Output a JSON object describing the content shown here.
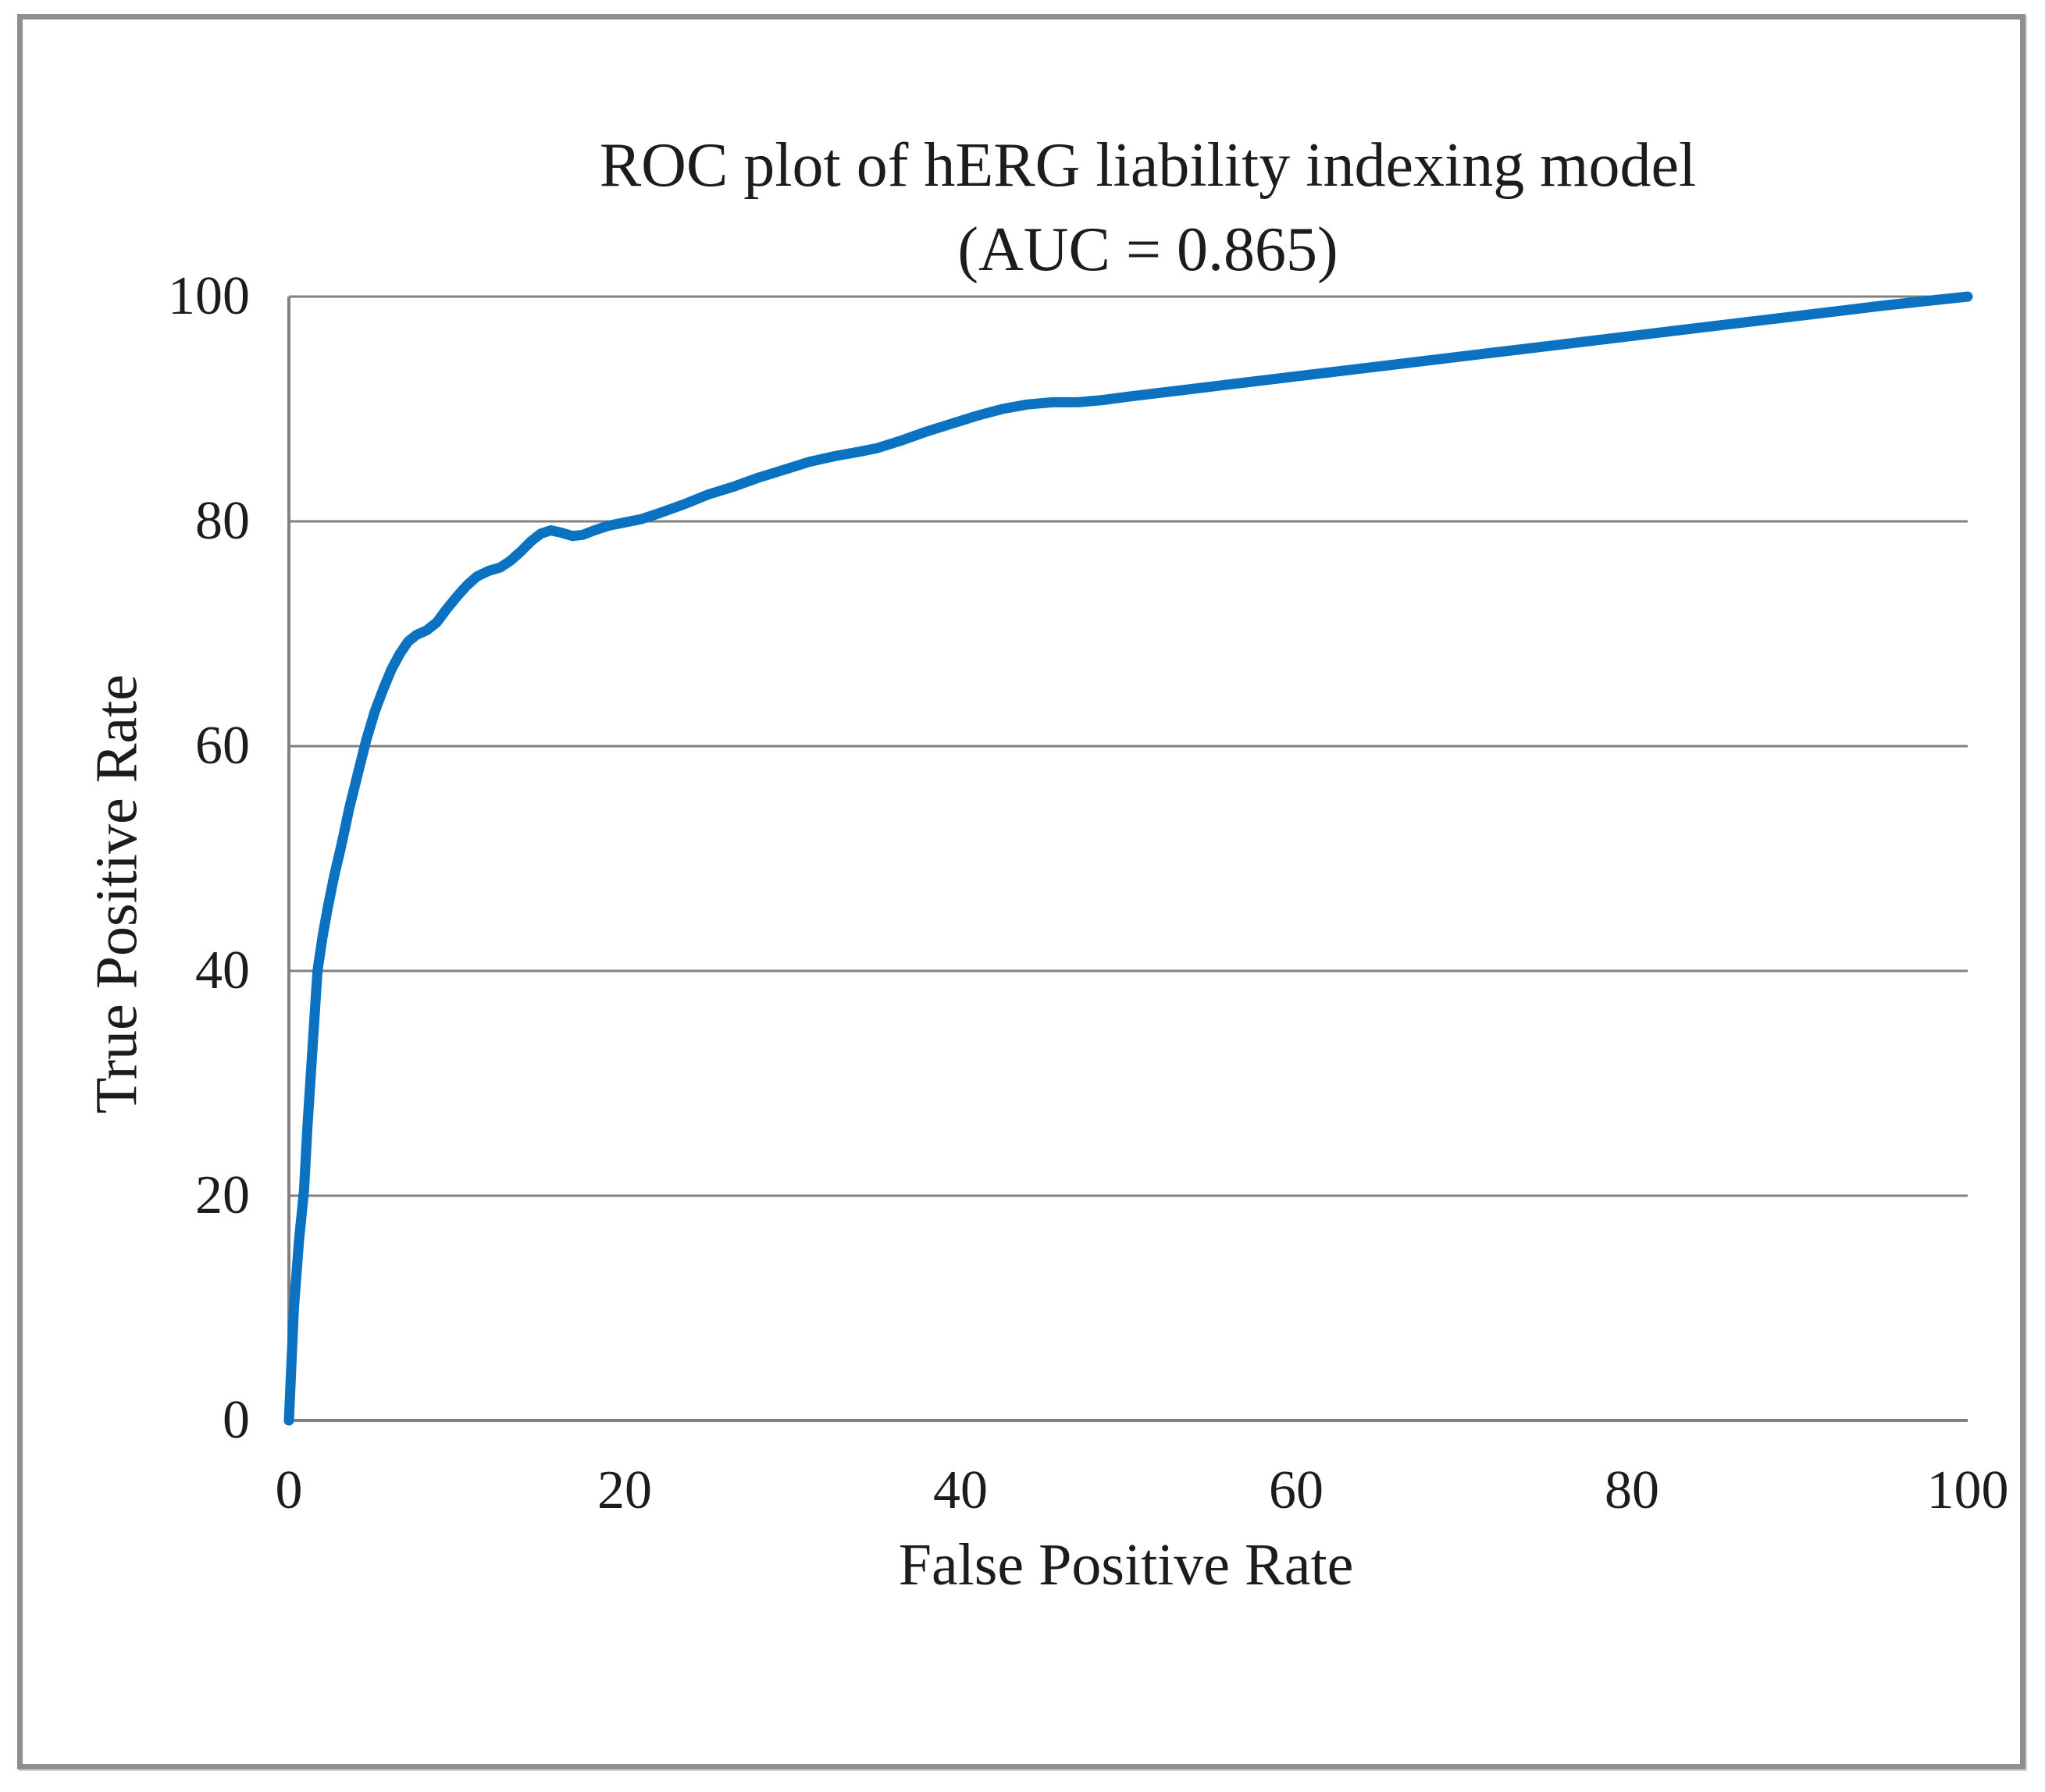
{
  "figure": {
    "title_line1": "ROC plot of hERG liability indexing model",
    "title_line2": "(AUC = 0.865)"
  },
  "chart_data": {
    "type": "line",
    "title": "ROC plot of hERG liability indexing model (AUC = 0.865)",
    "auc_label": "AUC = 0.865",
    "auc_value": 0.865,
    "xlabel": "False Positive Rate",
    "ylabel": "True Positive Rate",
    "xlim": [
      0,
      100
    ],
    "ylim": [
      0,
      100
    ],
    "x_ticks": [
      0,
      20,
      40,
      60,
      80,
      100
    ],
    "y_ticks": [
      0,
      20,
      40,
      60,
      80,
      100
    ],
    "grid": "horizontal-only",
    "legend_position": "none",
    "series": [
      {
        "name": "ROC curve",
        "color": "#0a72c0",
        "points": [
          [
            0,
            0
          ],
          [
            0.3,
            10
          ],
          [
            0.6,
            16
          ],
          [
            0.9,
            20.5
          ],
          [
            1.1,
            26
          ],
          [
            1.4,
            33
          ],
          [
            1.7,
            40
          ],
          [
            2,
            43
          ],
          [
            2.3,
            45.5
          ],
          [
            2.7,
            48.5
          ],
          [
            3.1,
            51
          ],
          [
            3.6,
            54.5
          ],
          [
            4.1,
            57.5
          ],
          [
            4.6,
            60.5
          ],
          [
            5.1,
            63
          ],
          [
            5.6,
            65
          ],
          [
            6.1,
            66.8
          ],
          [
            6.6,
            68.2
          ],
          [
            7.1,
            69.3
          ],
          [
            7.6,
            69.9
          ],
          [
            8.2,
            70.3
          ],
          [
            8.8,
            71
          ],
          [
            9.4,
            72.2
          ],
          [
            10,
            73.3
          ],
          [
            10.6,
            74.3
          ],
          [
            11.2,
            75.1
          ],
          [
            11.9,
            75.6
          ],
          [
            12.6,
            75.9
          ],
          [
            13.2,
            76.5
          ],
          [
            13.8,
            77.3
          ],
          [
            14.4,
            78.2
          ],
          [
            15,
            78.9
          ],
          [
            15.6,
            79.2
          ],
          [
            16.2,
            79
          ],
          [
            16.9,
            78.7
          ],
          [
            17.5,
            78.8
          ],
          [
            18.2,
            79.2
          ],
          [
            19,
            79.6
          ],
          [
            20,
            79.9
          ],
          [
            21,
            80.2
          ],
          [
            22,
            80.7
          ],
          [
            23.5,
            81.5
          ],
          [
            25,
            82.4
          ],
          [
            26.5,
            83.1
          ],
          [
            28,
            83.9
          ],
          [
            29.5,
            84.6
          ],
          [
            31,
            85.3
          ],
          [
            32.5,
            85.8
          ],
          [
            34,
            86.2
          ],
          [
            35,
            86.5
          ],
          [
            36.5,
            87.2
          ],
          [
            38,
            88
          ],
          [
            39.5,
            88.7
          ],
          [
            41,
            89.4
          ],
          [
            42.5,
            90
          ],
          [
            44,
            90.4
          ],
          [
            45.5,
            90.6
          ],
          [
            47,
            90.6
          ],
          [
            48.5,
            90.8
          ],
          [
            50,
            91.1
          ],
          [
            55,
            92
          ],
          [
            60,
            92.9
          ],
          [
            65,
            93.8
          ],
          [
            70,
            94.7
          ],
          [
            75,
            95.6
          ],
          [
            80,
            96.5
          ],
          [
            85,
            97.4
          ],
          [
            90,
            98.3
          ],
          [
            95,
            99.2
          ],
          [
            100,
            100
          ]
        ]
      }
    ]
  },
  "colors": {
    "curve": "#0a72c0",
    "grid": "#808080",
    "axis": "#808080",
    "text": "#1c1c1c",
    "frame_border": "#8f8f8f",
    "background": "#ffffff"
  }
}
